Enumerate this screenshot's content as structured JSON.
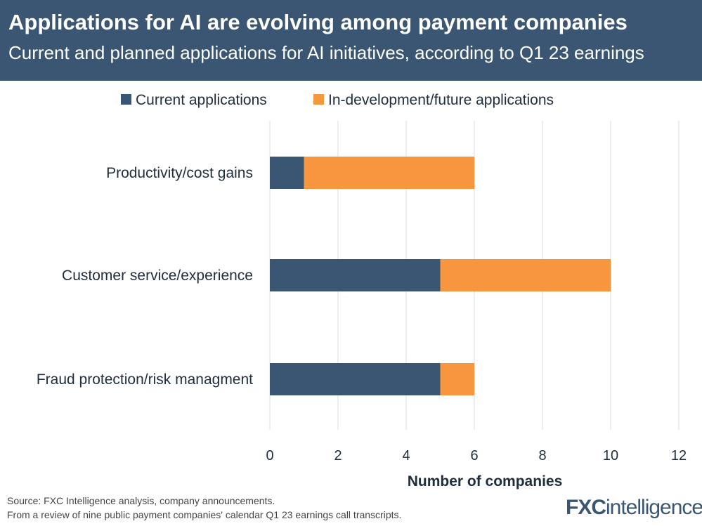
{
  "header": {
    "title": "Applications for AI are evolving among payment companies",
    "subtitle": "Current and planned applications for AI initiatives, according to Q1 23 earnings"
  },
  "chart_data": {
    "type": "bar",
    "orientation": "horizontal",
    "stacked": true,
    "categories": [
      "Productivity/cost gains",
      "Customer service/experience",
      "Fraud protection/risk managment"
    ],
    "series": [
      {
        "name": "Current applications",
        "color": "#3b5672",
        "values": [
          1,
          5,
          5
        ]
      },
      {
        "name": "In-development/future applications",
        "color": "#f7963f",
        "values": [
          5,
          5,
          1
        ]
      }
    ],
    "xlabel": "Number of companies",
    "xlim": [
      0,
      12
    ],
    "xticks": [
      0,
      2,
      4,
      6,
      8,
      10,
      12
    ],
    "grid": true,
    "legend_placement": "top"
  },
  "footer": {
    "source": "Source: FXC Intelligence analysis, company announcements.",
    "note": "From a review of nine public payment companies' calendar Q1 23 earnings call transcripts.",
    "logo_text": "FXCintelligence"
  }
}
